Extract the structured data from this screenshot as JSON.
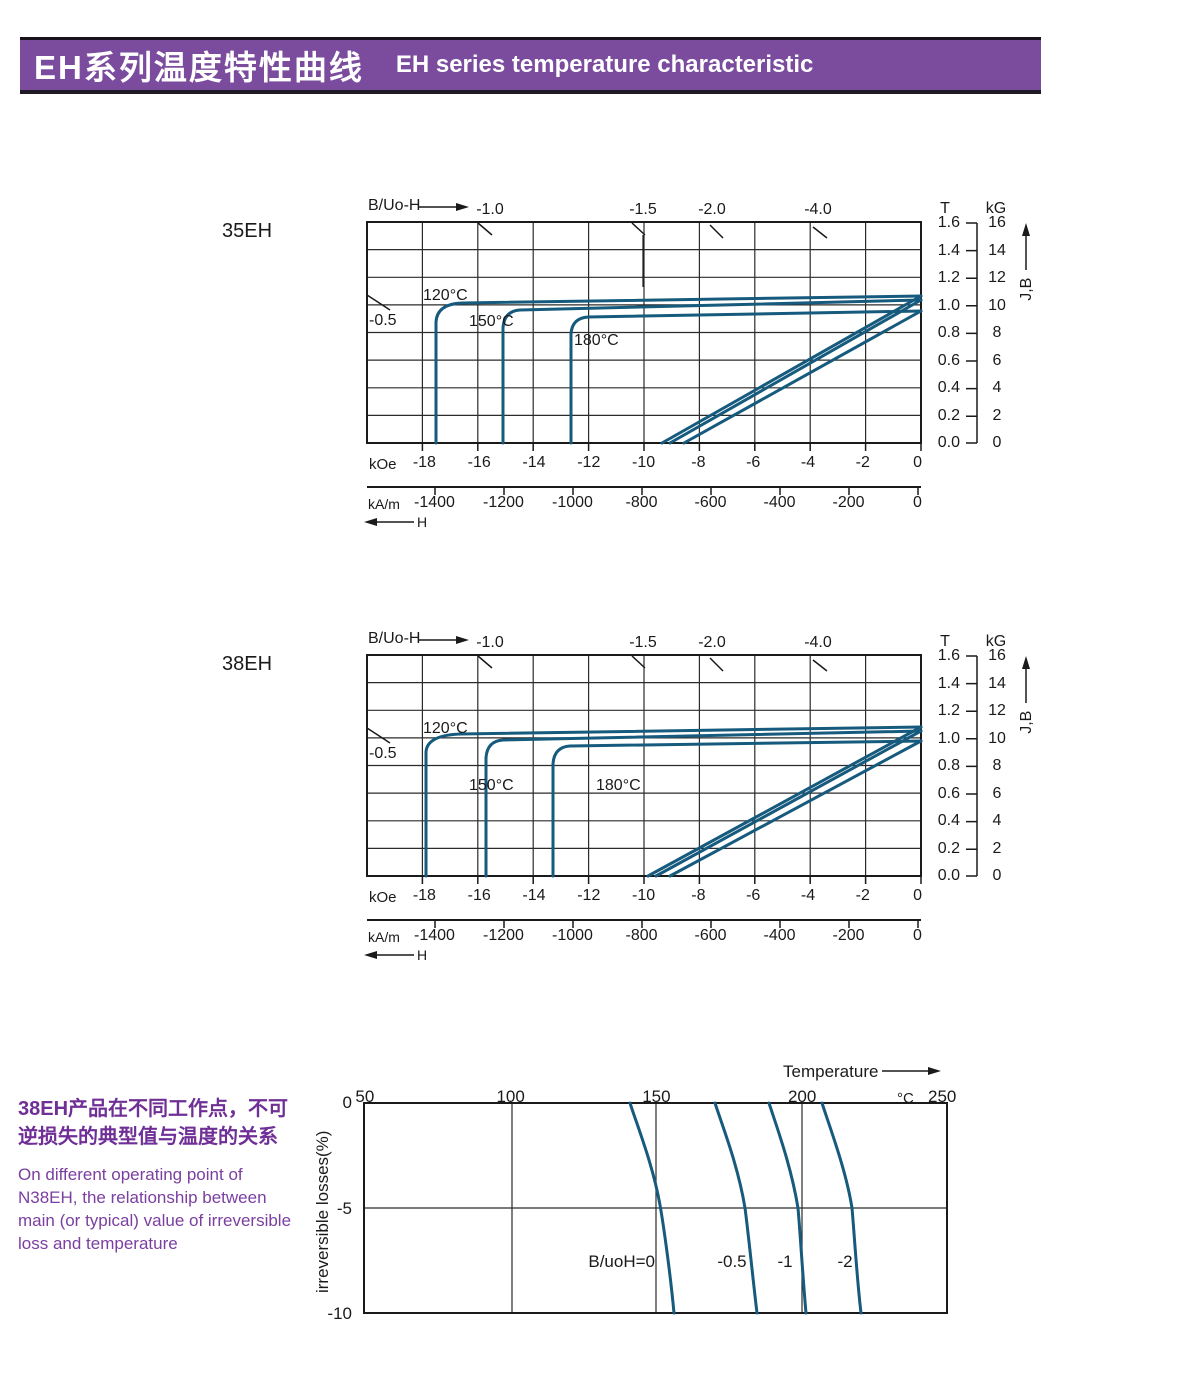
{
  "header": {
    "title_zh": "EH系列温度特性曲线",
    "title_en": "EH  series temperature characteristic"
  },
  "charts": [
    {
      "label": "35EH",
      "axis_label": "B/Uo-H",
      "load_lines": [
        "-1.0",
        "-1.5",
        "-2.0",
        "-4.0"
      ],
      "load_left": "-0.5",
      "temps": [
        "120°C",
        "150°C",
        "180°C"
      ],
      "koe_unit": "kOe",
      "koe_ticks": [
        "-18",
        "-16",
        "-14",
        "-12",
        "-10",
        "-8",
        "-6",
        "-4",
        "-2",
        "0"
      ],
      "kam_unit": "kA/m",
      "kam_ticks": [
        "-1400",
        "-1200",
        "-1000",
        "-800",
        "-600",
        "-400",
        "-200",
        "0"
      ],
      "h_label": "H",
      "t_unit": "T",
      "t_ticks": [
        "1.6",
        "1.4",
        "1.2",
        "1.0",
        "0.8",
        "0.6",
        "0.4",
        "0.2",
        "0.0"
      ],
      "kg_unit": "kG",
      "kg_ticks": [
        "16",
        "14",
        "12",
        "10",
        "8",
        "6",
        "4",
        "2",
        "0"
      ],
      "jb_label": "J,B"
    },
    {
      "label": "38EH",
      "axis_label": "B/Uo-H",
      "load_lines": [
        "-1.0",
        "-1.5",
        "-2.0",
        "-4.0"
      ],
      "load_left": "-0.5",
      "temps": [
        "120°C",
        "150°C",
        "180°C"
      ],
      "koe_unit": "kOe",
      "koe_ticks": [
        "-18",
        "-16",
        "-14",
        "-12",
        "-10",
        "-8",
        "-6",
        "-4",
        "-2",
        "0"
      ],
      "kam_unit": "kA/m",
      "kam_ticks": [
        "-1400",
        "-1200",
        "-1000",
        "-800",
        "-600",
        "-400",
        "-200",
        "0"
      ],
      "h_label": "H",
      "t_unit": "T",
      "t_ticks": [
        "1.6",
        "1.4",
        "1.2",
        "1.0",
        "0.8",
        "0.6",
        "0.4",
        "0.2",
        "0.0"
      ],
      "kg_unit": "kG",
      "kg_ticks": [
        "16",
        "14",
        "12",
        "10",
        "8",
        "6",
        "4",
        "2",
        "0"
      ],
      "jb_label": "J,B"
    }
  ],
  "loss": {
    "title": "Temperature",
    "temp_ticks": [
      "50",
      "100",
      "150",
      "200"
    ],
    "unit": "°C",
    "last_tick": "250",
    "y_ticks": [
      "0",
      "-5",
      "-10"
    ],
    "y_label": "irreversible  losses(%)",
    "labels": [
      "B/uoH=0",
      "-0.5",
      "-1",
      "-2"
    ]
  },
  "note": {
    "zh1": "38EH产品在不同工作点，不可",
    "zh2": "逆损失的典型值与温度的关系",
    "en1": "On different operating point of",
    "en2": "N38EH,  the relationship between",
    "en3": "main (or typical) value of irreversible",
    "en4": "loss and temperature"
  },
  "chart_data": [
    {
      "type": "line",
      "title": "35EH demagnetization curves (J-H and B-H)",
      "xlabel": "H",
      "ylabel": "J,B",
      "x_units": [
        "kOe",
        "kA/m"
      ],
      "y_units": [
        "T",
        "kG"
      ],
      "xlim_kOe": [
        -20,
        0
      ],
      "ylim_T": [
        0,
        1.6
      ],
      "grid": true,
      "load_lines_B_u0H": [
        -0.5,
        -1.0,
        -1.5,
        -2.0,
        -4.0
      ],
      "series": [
        {
          "name": "120°C J",
          "points_kOe_T": [
            [
              0,
              1.06
            ],
            [
              -16.6,
              1.04
            ],
            [
              -17.4,
              0.9
            ],
            [
              -17.4,
              0
            ]
          ]
        },
        {
          "name": "120°C B",
          "points_kOe_T": [
            [
              0,
              1.06
            ],
            [
              -9.2,
              0
            ]
          ]
        },
        {
          "name": "150°C J",
          "points_kOe_T": [
            [
              0,
              1.04
            ],
            [
              -14.5,
              1.0
            ],
            [
              -15.0,
              0.85
            ],
            [
              -15.0,
              0
            ]
          ]
        },
        {
          "name": "150°C B",
          "points_kOe_T": [
            [
              0,
              1.04
            ],
            [
              -9.0,
              0
            ]
          ]
        },
        {
          "name": "180°C J",
          "points_kOe_T": [
            [
              0,
              0.97
            ],
            [
              -12.0,
              0.94
            ],
            [
              -12.6,
              0.8
            ],
            [
              -12.6,
              0
            ]
          ]
        },
        {
          "name": "180°C B",
          "points_kOe_T": [
            [
              0,
              0.97
            ],
            [
              -8.4,
              0
            ]
          ]
        }
      ]
    },
    {
      "type": "line",
      "title": "38EH demagnetization curves (J-H and B-H)",
      "xlabel": "H",
      "ylabel": "J,B",
      "x_units": [
        "kOe",
        "kA/m"
      ],
      "y_units": [
        "T",
        "kG"
      ],
      "xlim_kOe": [
        -20,
        0
      ],
      "ylim_T": [
        0,
        1.6
      ],
      "grid": true,
      "load_lines_B_u0H": [
        -0.5,
        -1.0,
        -1.5,
        -2.0,
        -4.0
      ],
      "series": [
        {
          "name": "120°C J",
          "points_kOe_T": [
            [
              0,
              1.08
            ],
            [
              -17.1,
              1.03
            ],
            [
              -17.8,
              0.9
            ],
            [
              -17.8,
              0
            ]
          ]
        },
        {
          "name": "120°C B",
          "points_kOe_T": [
            [
              0,
              1.08
            ],
            [
              -9.7,
              0
            ]
          ]
        },
        {
          "name": "150°C J",
          "points_kOe_T": [
            [
              0,
              1.05
            ],
            [
              -15.0,
              0.99
            ],
            [
              -15.6,
              0.85
            ],
            [
              -15.6,
              0
            ]
          ]
        },
        {
          "name": "150°C B",
          "points_kOe_T": [
            [
              0,
              1.05
            ],
            [
              -9.5,
              0
            ]
          ]
        },
        {
          "name": "180°C J",
          "points_kOe_T": [
            [
              0,
              0.98
            ],
            [
              -12.5,
              0.94
            ],
            [
              -13.2,
              0.8
            ],
            [
              -13.2,
              0
            ]
          ]
        },
        {
          "name": "180°C B",
          "points_kOe_T": [
            [
              0,
              0.98
            ],
            [
              -9.0,
              0
            ]
          ]
        }
      ]
    },
    {
      "type": "line",
      "title": "N38EH irreversible losses vs temperature",
      "xlabel": "Temperature (°C)",
      "ylabel": "irreversible losses(%)",
      "xlim": [
        50,
        250
      ],
      "ylim": [
        -10,
        0
      ],
      "grid": true,
      "series": [
        {
          "name": "B/uoH=0",
          "points_C_pct": [
            [
              141,
              0
            ],
            [
              148,
              -2
            ],
            [
              152,
              -5
            ],
            [
              156,
              -10
            ]
          ]
        },
        {
          "name": "B/uoH=-0.5",
          "points_C_pct": [
            [
              171,
              0
            ],
            [
              177,
              -2
            ],
            [
              180,
              -5
            ],
            [
              184,
              -10
            ]
          ]
        },
        {
          "name": "B/uoH=-1",
          "points_C_pct": [
            [
              189,
              0
            ],
            [
              195,
              -2
            ],
            [
              198,
              -5
            ],
            [
              201,
              -10
            ]
          ]
        },
        {
          "name": "B/uoH=-2",
          "points_C_pct": [
            [
              207,
              0
            ],
            [
              213,
              -2
            ],
            [
              217,
              -5
            ],
            [
              220,
              -10
            ]
          ]
        }
      ]
    }
  ]
}
